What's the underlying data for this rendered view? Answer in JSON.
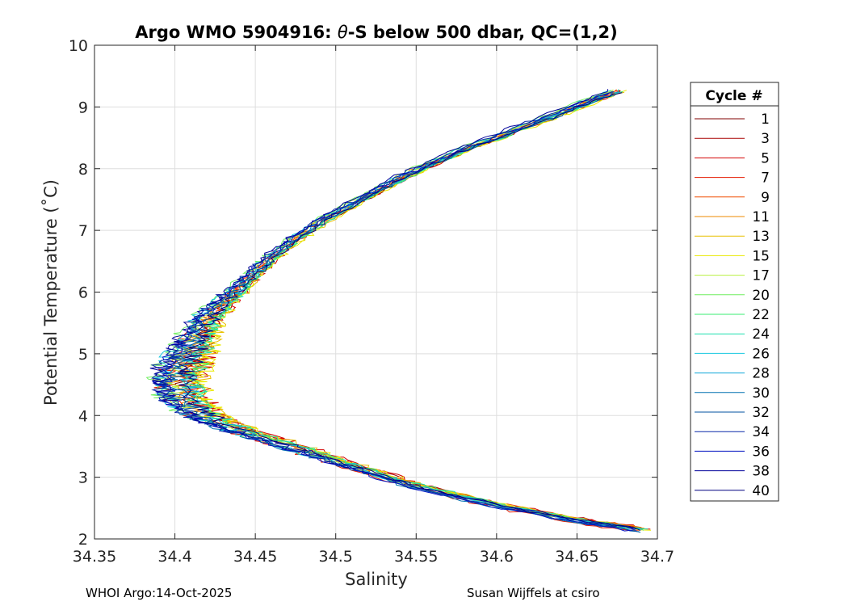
{
  "chart_data": {
    "type": "line",
    "title": "Argo WMO 5904916: θ-S below 500 dbar,  QC=(1,2)",
    "title_parts": {
      "prefix": "Argo WMO 5904916: ",
      "theta": "θ",
      "suffix": "-S below 500 dbar,  QC=(1,2)"
    },
    "xlabel": "Salinity",
    "ylabel": "Potential Temperature (˚C)",
    "xlim": [
      34.35,
      34.7
    ],
    "ylim": [
      2,
      10
    ],
    "x_ticks": [
      34.35,
      34.4,
      34.45,
      34.5,
      34.55,
      34.6,
      34.65,
      34.7
    ],
    "x_tick_labels": [
      "34.35",
      "34.4",
      "34.45",
      "34.5",
      "34.55",
      "34.6",
      "34.65",
      "34.7"
    ],
    "y_ticks": [
      2,
      3,
      4,
      5,
      6,
      7,
      8,
      9,
      10
    ],
    "y_tick_labels": [
      "2",
      "3",
      "4",
      "5",
      "6",
      "7",
      "8",
      "9",
      "10"
    ],
    "grid": true,
    "legend": {
      "title": "Cycle #",
      "placement": "outside-right",
      "entries": [
        {
          "label": "1",
          "color": "#800000"
        },
        {
          "label": "3",
          "color": "#a80000"
        },
        {
          "label": "5",
          "color": "#d20000"
        },
        {
          "label": "7",
          "color": "#e41a00"
        },
        {
          "label": "9",
          "color": "#f04c00"
        },
        {
          "label": "11",
          "color": "#ee8a00"
        },
        {
          "label": "13",
          "color": "#e8c000"
        },
        {
          "label": "15",
          "color": "#eaea00"
        },
        {
          "label": "17",
          "color": "#b8f040"
        },
        {
          "label": "20",
          "color": "#70ee60"
        },
        {
          "label": "22",
          "color": "#38ec70"
        },
        {
          "label": "24",
          "color": "#20e0b0"
        },
        {
          "label": "26",
          "color": "#18c8e0"
        },
        {
          "label": "28",
          "color": "#10a8d8"
        },
        {
          "label": "30",
          "color": "#0070b0"
        },
        {
          "label": "32",
          "color": "#0050a0"
        },
        {
          "label": "34",
          "color": "#0a28a8"
        },
        {
          "label": "36",
          "color": "#0010c0"
        },
        {
          "label": "38",
          "color": "#00009a"
        },
        {
          "label": "40",
          "color": "#000080"
        }
      ]
    },
    "profile_shape": {
      "description": "Approximate mean theta-S curve shared by all cycles",
      "points": [
        [
          34.69,
          2.15
        ],
        [
          34.65,
          2.3
        ],
        [
          34.6,
          2.55
        ],
        [
          34.55,
          2.85
        ],
        [
          34.52,
          3.1
        ],
        [
          34.49,
          3.35
        ],
        [
          34.46,
          3.6
        ],
        [
          34.43,
          3.85
        ],
        [
          34.415,
          4.05
        ],
        [
          34.405,
          4.3
        ],
        [
          34.402,
          4.55
        ],
        [
          34.405,
          4.8
        ],
        [
          34.41,
          5.05
        ],
        [
          34.415,
          5.3
        ],
        [
          34.42,
          5.55
        ],
        [
          34.43,
          5.8
        ],
        [
          34.44,
          6.05
        ],
        [
          34.45,
          6.3
        ],
        [
          34.46,
          6.55
        ],
        [
          34.475,
          6.85
        ],
        [
          34.495,
          7.2
        ],
        [
          34.52,
          7.55
        ],
        [
          34.545,
          7.9
        ],
        [
          34.575,
          8.25
        ],
        [
          34.61,
          8.6
        ],
        [
          34.645,
          8.95
        ],
        [
          34.675,
          9.25
        ]
      ]
    },
    "series": [
      {
        "name": "1",
        "color": "#800000"
      },
      {
        "name": "3",
        "color": "#a80000"
      },
      {
        "name": "5",
        "color": "#d20000"
      },
      {
        "name": "7",
        "color": "#e41a00"
      },
      {
        "name": "9",
        "color": "#f04c00"
      },
      {
        "name": "11",
        "color": "#ee8a00"
      },
      {
        "name": "13",
        "color": "#e8c000"
      },
      {
        "name": "15",
        "color": "#eaea00"
      },
      {
        "name": "17",
        "color": "#b8f040"
      },
      {
        "name": "20",
        "color": "#70ee60"
      },
      {
        "name": "22",
        "color": "#38ec70"
      },
      {
        "name": "24",
        "color": "#20e0b0"
      },
      {
        "name": "26",
        "color": "#18c8e0"
      },
      {
        "name": "28",
        "color": "#10a8d8"
      },
      {
        "name": "30",
        "color": "#0070b0"
      },
      {
        "name": "32",
        "color": "#0050a0"
      },
      {
        "name": "34",
        "color": "#0a28a8"
      },
      {
        "name": "36",
        "color": "#0010c0"
      },
      {
        "name": "38",
        "color": "#00009a"
      },
      {
        "name": "40",
        "color": "#000080"
      }
    ]
  },
  "footer": {
    "left": "WHOI Argo:14-Oct-2025",
    "right": "Susan Wijffels at csiro"
  }
}
